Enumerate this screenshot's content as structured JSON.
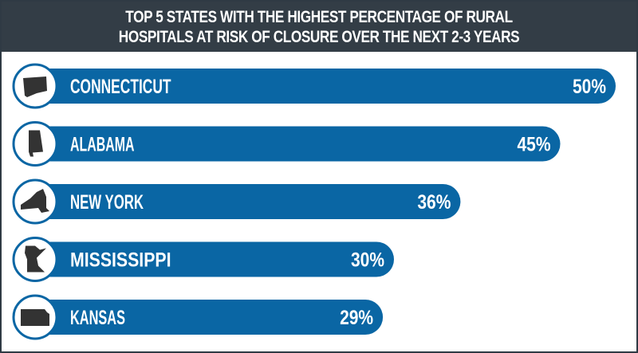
{
  "chart_data": {
    "type": "bar",
    "orientation": "horizontal",
    "title_lines": [
      "TOP 5 STATES WITH THE HIGHEST PERCENTAGE OF RURAL",
      "HOSPITALS AT RISK OF CLOSURE OVER THE NEXT 2-3 YEARS"
    ],
    "categories": [
      "CONNECTICUT",
      "ALABAMA",
      "NEW YORK",
      "MISSISSIPPI",
      "KANSAS"
    ],
    "values": [
      50,
      45,
      36,
      30,
      29
    ],
    "value_labels": [
      "50%",
      "45%",
      "36%",
      "30%",
      "29%"
    ],
    "icons": [
      "connecticut-shape-icon",
      "alabama-shape-icon",
      "new-york-shape-icon",
      "minnesota-shape-icon",
      "kansas-shape-icon"
    ],
    "colors": {
      "bar": "#0a66a4",
      "header": "#333d46",
      "icon": "#333333"
    }
  }
}
